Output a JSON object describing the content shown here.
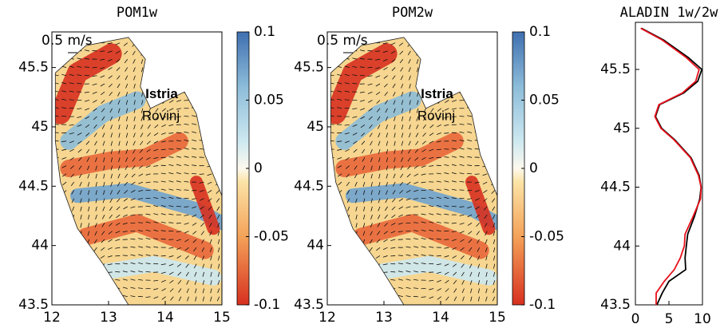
{
  "chart_data": [
    {
      "type": "map",
      "title": "POM1w",
      "xlim": [
        12,
        15
      ],
      "xticks": [
        12,
        13,
        14,
        15
      ],
      "ylim": [
        43.5,
        45.8
      ],
      "yticks": [
        43.5,
        44,
        44.5,
        45,
        45.5
      ],
      "colorbar": {
        "lim": [
          -0.1,
          0.1
        ],
        "ticks": [
          0.1,
          0.05,
          0,
          -0.05,
          -0.1
        ]
      },
      "annotations": [
        "0.5 m/s",
        "Istria",
        "Rovinj"
      ]
    },
    {
      "type": "map",
      "title": "POM2w",
      "xlim": [
        12,
        15
      ],
      "xticks": [
        12,
        13,
        14,
        15
      ],
      "ylim": [
        43.5,
        45.8
      ],
      "yticks": [
        43.5,
        44,
        44.5,
        45,
        45.5
      ],
      "colorbar": {
        "lim": [
          -0.1,
          0.1
        ],
        "ticks": [
          0.1,
          0.05,
          0,
          -0.05,
          -0.1
        ]
      },
      "annotations": [
        "0.5 m/s",
        "Istria",
        "Rovinj"
      ]
    },
    {
      "type": "profile",
      "title": "ALADIN 1w/2w",
      "xlim": [
        0,
        10
      ],
      "xticks": [
        0,
        5,
        10
      ],
      "ylim": [
        43.5,
        45.9
      ],
      "yticks": [
        43.5,
        44,
        44.5,
        45,
        45.5
      ],
      "y": [
        45.85,
        45.75,
        45.6,
        45.5,
        45.4,
        45.3,
        45.2,
        45.1,
        45.0,
        44.9,
        44.75,
        44.6,
        44.5,
        44.4,
        44.25,
        44.1,
        44.0,
        43.9,
        43.8,
        43.7,
        43.6,
        43.5
      ],
      "series": [
        {
          "color": "#000000",
          "values": [
            0.9,
            4.2,
            7.9,
            9.9,
            9.3,
            7.2,
            3.6,
            3.0,
            3.9,
            5.9,
            8.3,
            9.5,
            9.8,
            9.6,
            8.8,
            7.8,
            7.6,
            7.4,
            7.5,
            5.0,
            4.0,
            3.2
          ]
        },
        {
          "color": "#e8101a",
          "values": [
            0.8,
            4.0,
            7.6,
            9.5,
            9.0,
            7.0,
            3.5,
            2.9,
            3.8,
            5.8,
            8.2,
            9.4,
            9.8,
            9.7,
            8.6,
            7.4,
            7.3,
            6.7,
            5.8,
            4.3,
            3.1,
            3.1
          ]
        }
      ]
    }
  ]
}
